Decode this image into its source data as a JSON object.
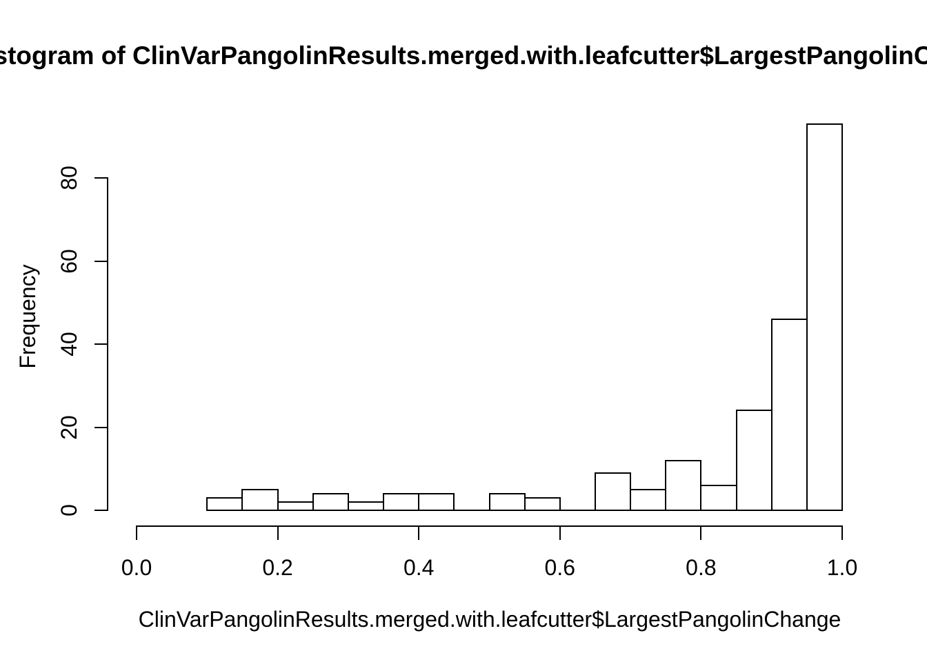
{
  "page": {
    "background": "#ffffff",
    "foreground": "#000000"
  },
  "chart_data": {
    "type": "bar",
    "subtype": "histogram",
    "title": "Histogram of ClinVarPangolinResults.merged.with.leafcutter$LargestPangolinChange",
    "xlabel": "ClinVarPangolinResults.merged.with.leafcutter$LargestPangolinChange",
    "ylabel": "Frequency",
    "bins": {
      "start": 0.1,
      "width": 0.05
    },
    "bin_edges": [
      0.1,
      0.15,
      0.2,
      0.25,
      0.3,
      0.35,
      0.4,
      0.45,
      0.5,
      0.55,
      0.6,
      0.65,
      0.7,
      0.75,
      0.8,
      0.85,
      0.9,
      0.95,
      1.0
    ],
    "counts": [
      3,
      5,
      2,
      4,
      2,
      4,
      4,
      0,
      4,
      3,
      0,
      9,
      5,
      12,
      6,
      24,
      46,
      93
    ],
    "x_ticks": [
      {
        "value": 0.0,
        "label": "0.0"
      },
      {
        "value": 0.2,
        "label": "0.2"
      },
      {
        "value": 0.4,
        "label": "0.4"
      },
      {
        "value": 0.6,
        "label": "0.6"
      },
      {
        "value": 0.8,
        "label": "0.8"
      },
      {
        "value": 1.0,
        "label": "1.0"
      }
    ],
    "y_ticks": [
      {
        "value": 0,
        "label": "0"
      },
      {
        "value": 20,
        "label": "20"
      },
      {
        "value": 40,
        "label": "40"
      },
      {
        "value": 60,
        "label": "60"
      },
      {
        "value": 80,
        "label": "80"
      }
    ],
    "xlim": [
      0.0,
      1.0
    ],
    "ylim": [
      0,
      93
    ],
    "y_axis_tick_range": [
      0,
      80
    ],
    "grid": false,
    "legend": null,
    "bar_fill": "#ffffff",
    "bar_border": "#000000",
    "axis_color": "#000000"
  }
}
